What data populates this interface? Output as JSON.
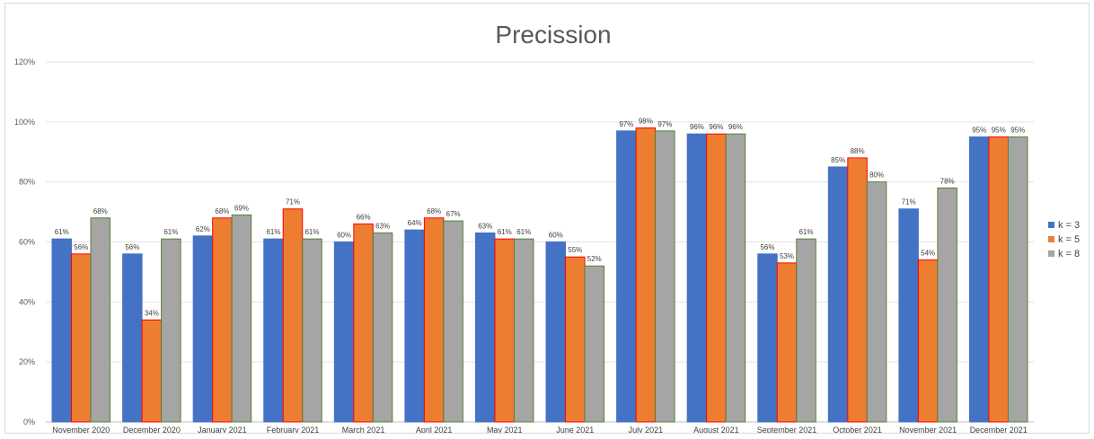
{
  "chart_data": {
    "type": "bar",
    "title": "Precission",
    "xlabel": "",
    "ylabel": "",
    "ylim": [
      0,
      120
    ],
    "yticks": [
      "0%",
      "20%",
      "40%",
      "60%",
      "80%",
      "100%",
      "120%"
    ],
    "ytick_values": [
      0,
      20,
      40,
      60,
      80,
      100,
      120
    ],
    "grid": true,
    "legend_position": "right",
    "categories": [
      "November 2020",
      "December 2020",
      "January 2021",
      "February 2021",
      "March 2021",
      "April 2021",
      "May 2021",
      "June 2021",
      "July 2021",
      "August 2021",
      "September 2021",
      "October 2021",
      "November 2021",
      "December 2021"
    ],
    "series": [
      {
        "name": "k = 3",
        "color": "#4472c4",
        "edge": "#4472c4",
        "values": [
          61,
          56,
          62,
          61,
          60,
          64,
          63,
          60,
          97,
          96,
          56,
          85,
          71,
          95
        ],
        "labels": [
          "61%",
          "56%",
          "62%",
          "61%",
          "60%",
          "64%",
          "63%",
          "60%",
          "97%",
          "96%",
          "56%",
          "85%",
          "71%",
          "95%"
        ]
      },
      {
        "name": "k = 5",
        "color": "#ed7d31",
        "edge": "#ff0000",
        "values": [
          56,
          34,
          68,
          71,
          66,
          68,
          61,
          55,
          98,
          96,
          53,
          88,
          54,
          95
        ],
        "labels": [
          "56%",
          "34%",
          "68%",
          "71%",
          "66%",
          "68%",
          "61%",
          "55%",
          "98%",
          "96%",
          "53%",
          "88%",
          "54%",
          "95%"
        ]
      },
      {
        "name": "k = 8",
        "color": "#a5a5a5",
        "edge": "#548235",
        "values": [
          68,
          61,
          69,
          61,
          63,
          67,
          61,
          52,
          97,
          96,
          61,
          80,
          78,
          95
        ],
        "labels": [
          "68%",
          "61%",
          "69%",
          "61%",
          "63%",
          "67%",
          "61%",
          "52%",
          "97%",
          "96%",
          "61%",
          "80%",
          "78%",
          "95%"
        ]
      }
    ]
  }
}
